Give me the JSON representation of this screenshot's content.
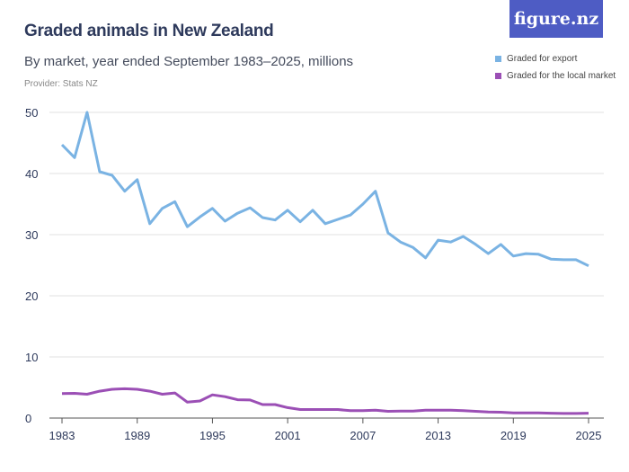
{
  "logo": "figure.nz",
  "chart_data": {
    "type": "line",
    "title": "Graded animals in New Zealand",
    "subtitle": "By market, year ended September 1983–2025, millions",
    "provider": "Provider: Stats NZ",
    "ylim": [
      0,
      50
    ],
    "yticks": [
      0,
      10,
      20,
      30,
      40,
      50
    ],
    "xticks": [
      1983,
      1989,
      1995,
      2001,
      2007,
      2013,
      2019,
      2025
    ],
    "grid": true,
    "legend_position": "top-right",
    "x": [
      1983,
      1984,
      1985,
      1986,
      1987,
      1988,
      1989,
      1990,
      1991,
      1992,
      1993,
      1994,
      1995,
      1996,
      1997,
      1998,
      1999,
      2000,
      2001,
      2002,
      2003,
      2004,
      2005,
      2006,
      2007,
      2008,
      2009,
      2010,
      2011,
      2012,
      2013,
      2014,
      2015,
      2016,
      2017,
      2018,
      2019,
      2020,
      2021,
      2022,
      2023,
      2024,
      2025
    ],
    "series": [
      {
        "name": "Graded for export",
        "color": "#7ab3e3",
        "values": [
          44.7,
          42.6,
          50,
          40.3,
          39.7,
          37.1,
          39.0,
          31.8,
          34.3,
          35.4,
          31.3,
          32.9,
          34.3,
          32.2,
          33.5,
          34.4,
          32.8,
          32.4,
          34.0,
          32.1,
          34.0,
          31.8,
          32.5,
          33.2,
          35.0,
          37.1,
          30.3,
          28.8,
          27.9,
          26.2,
          29.1,
          28.8,
          29.7,
          28.4,
          26.9,
          28.4,
          26.5,
          26.9,
          26.8,
          26.0,
          25.9,
          25.9,
          24.9
        ]
      },
      {
        "name": "Graded for the local market",
        "color": "#9b4fb5",
        "values": [
          4.0,
          4.05,
          3.9,
          4.4,
          4.7,
          4.8,
          4.7,
          4.4,
          3.9,
          4.1,
          2.6,
          2.8,
          3.8,
          3.5,
          3.0,
          2.95,
          2.2,
          2.2,
          1.7,
          1.4,
          1.4,
          1.4,
          1.4,
          1.2,
          1.2,
          1.3,
          1.1,
          1.15,
          1.15,
          1.3,
          1.3,
          1.3,
          1.2,
          1.1,
          1.0,
          0.95,
          0.85,
          0.85,
          0.85,
          0.8,
          0.75,
          0.75,
          0.8
        ]
      }
    ]
  }
}
